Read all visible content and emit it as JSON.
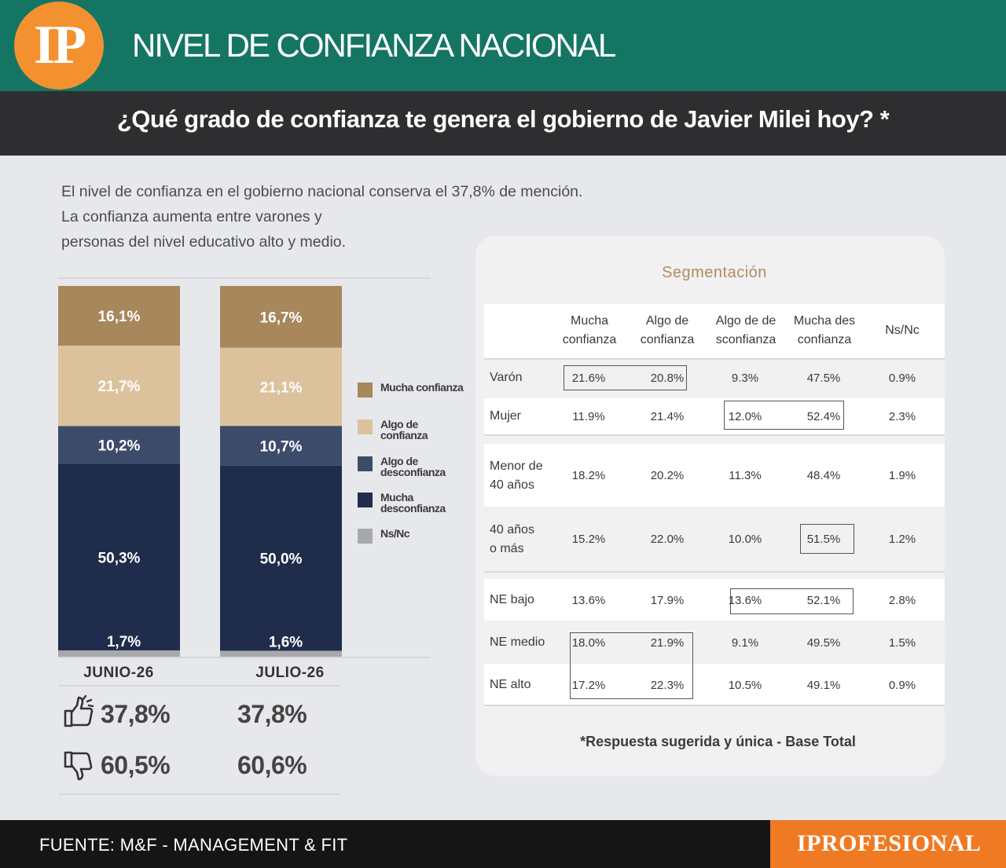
{
  "header": {
    "logo_text": "IP",
    "title": "NIVEL DE CONFIANZA NACIONAL",
    "question": "¿Qué grado de confianza te genera el gobierno de Javier Milei hoy? *"
  },
  "intro": [
    "El nivel de confianza en el gobierno nacional conserva el 37,8% de mención.",
    "La confianza aumenta entre varones y",
    "personas del nivel educativo alto y medio."
  ],
  "colors": {
    "mucha_confianza": "#a8875c",
    "algo_confianza": "#dcc29c",
    "algo_desconfianza": "#3d4b6b",
    "mucha_desconfianza": "#202c4b",
    "ns_nc": "#a7a9ab",
    "header_green": "#157563",
    "orange": "#f39130"
  },
  "chart_data": {
    "type": "bar",
    "stacked": true,
    "categories": [
      "JUNIO-26",
      "JULIO-26"
    ],
    "series": [
      {
        "name": "Mucha confianza",
        "values": [
          16.1,
          16.7
        ],
        "labels": [
          "16,1%",
          "16,7%"
        ]
      },
      {
        "name": "Algo de confianza",
        "values": [
          21.7,
          21.1
        ],
        "labels": [
          "21,7%",
          "21,1%"
        ]
      },
      {
        "name": "Algo de desconfianza",
        "values": [
          10.2,
          10.7
        ],
        "labels": [
          "10,2%",
          "10,7%"
        ]
      },
      {
        "name": "Mucha desconfianza",
        "values": [
          50.3,
          50.0
        ],
        "labels": [
          "50,3%",
          "50,0%"
        ]
      },
      {
        "name": "Ns/Nc",
        "values": [
          1.7,
          1.6
        ],
        "labels": [
          "1,7%",
          "1,6%"
        ]
      }
    ],
    "legend": [
      "Mucha confianza",
      "Algo de confianza",
      "Algo de desconfianza",
      "Mucha desconfianza",
      "Ns/Nc"
    ],
    "legend_position": "right",
    "summary": {
      "confianza": [
        "37,8%",
        "37,8%"
      ],
      "desconfianza": [
        "60,5%",
        "60,6%"
      ]
    }
  },
  "segmentation": {
    "title": "Segmentación",
    "headers": [
      [
        "Mucha",
        "confianza"
      ],
      [
        "Algo de",
        "confianza"
      ],
      [
        "Algo de de",
        "sconfianza"
      ],
      [
        "Mucha des",
        "confianza"
      ],
      [
        "Ns/Nc"
      ]
    ],
    "rows": [
      {
        "label": [
          "Varón"
        ],
        "values": [
          "21.6%",
          "20.8%",
          "9.3%",
          "47.5%",
          "0.9%"
        ]
      },
      {
        "label": [
          "Mujer"
        ],
        "values": [
          "11.9%",
          "21.4%",
          "12.0%",
          "52.4%",
          "2.3%"
        ]
      },
      {
        "label": [
          "Menor de",
          "40 años"
        ],
        "values": [
          "18.2%",
          "20.2%",
          "11.3%",
          "48.4%",
          "1.9%"
        ]
      },
      {
        "label": [
          "40 años",
          "o más"
        ],
        "values": [
          "15.2%",
          "22.0%",
          "10.0%",
          "51.5%",
          "1.2%"
        ]
      },
      {
        "label": [
          "NE bajo"
        ],
        "values": [
          "13.6%",
          "17.9%",
          "13.6%",
          "52.1%",
          "2.8%"
        ]
      },
      {
        "label": [
          "NE medio"
        ],
        "values": [
          "18.0%",
          "21.9%",
          "9.1%",
          "49.5%",
          "1.5%"
        ]
      },
      {
        "label": [
          "NE alto"
        ],
        "values": [
          "17.2%",
          "22.3%",
          "10.5%",
          "49.1%",
          "0.9%"
        ]
      }
    ],
    "note": "*Respuesta sugerida y única - Base Total"
  },
  "footer": {
    "source": "FUENTE: M&F - MANAGEMENT & FIT",
    "brand": "IPROFESIONAL"
  }
}
